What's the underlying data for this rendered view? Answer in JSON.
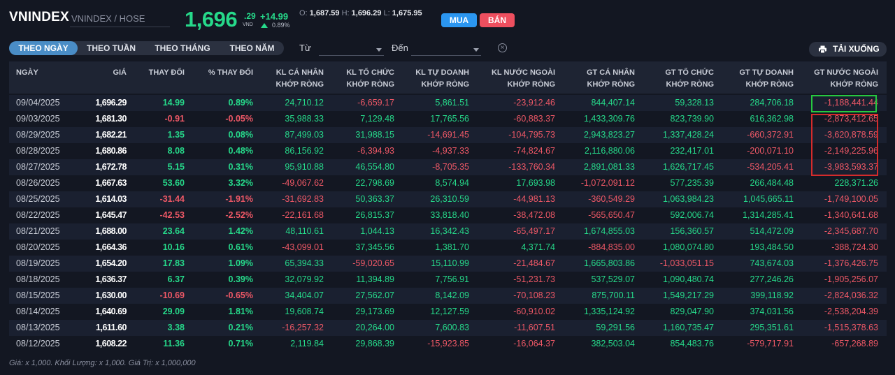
{
  "header": {
    "symbol": "VNINDEX",
    "subtitle": "VNINDEX / HOSE",
    "price_int": "1,696",
    "price_dec": ".29",
    "unit": "VND",
    "change": "+14.99",
    "change_pct": "0.89%",
    "open_label": "O:",
    "open": "1,687.59",
    "high_label": "H:",
    "high": "1,696.29",
    "low_label": "L:",
    "low": "1,675.95",
    "buy_label": "MUA",
    "sell_label": "BÁN"
  },
  "toolbar": {
    "tabs": [
      {
        "label": "THEO NGÀY",
        "active": true
      },
      {
        "label": "THEO TUẦN",
        "active": false
      },
      {
        "label": "THEO THÁNG",
        "active": false
      },
      {
        "label": "THEO NĂM",
        "active": false
      }
    ],
    "from_label": "Từ",
    "to_label": "Đến",
    "from_value": "",
    "to_value": "",
    "clear_icon": "close-circle-icon",
    "download_label": "TẢI XUỐNG",
    "download_icon": "printer-icon"
  },
  "table": {
    "columns": [
      {
        "l1": "NGÀY",
        "l2": ""
      },
      {
        "l1": "GIÁ",
        "l2": ""
      },
      {
        "l1": "THAY ĐỔI",
        "l2": ""
      },
      {
        "l1": "% THAY ĐỔI",
        "l2": ""
      },
      {
        "l1": "KL CÁ NHÂN",
        "l2": "KHỚP RÒNG"
      },
      {
        "l1": "KL TỔ CHỨC",
        "l2": "KHỚP RÒNG"
      },
      {
        "l1": "KL TỰ DOANH",
        "l2": "KHỚP RÒNG"
      },
      {
        "l1": "KL NƯỚC NGOÀI",
        "l2": "KHỚP RÒNG"
      },
      {
        "l1": "GT CÁ NHÂN",
        "l2": "KHỚP RÒNG"
      },
      {
        "l1": "GT TỔ CHỨC",
        "l2": "KHỚP RÒNG"
      },
      {
        "l1": "GT TỰ DOANH",
        "l2": "KHỚP RÒNG"
      },
      {
        "l1": "GT NƯỚC NGOÀI",
        "l2": "KHỚP RÒNG"
      }
    ],
    "rows": [
      [
        "09/04/2025",
        "1,696.29",
        "14.99",
        "0.89%",
        "24,710.12",
        "-6,659.17",
        "5,861.51",
        "-23,912.46",
        "844,407.14",
        "59,328.13",
        "284,706.18",
        "-1,188,441.44"
      ],
      [
        "09/03/2025",
        "1,681.30",
        "-0.91",
        "-0.05%",
        "35,988.33",
        "7,129.48",
        "17,765.56",
        "-60,883.37",
        "1,433,309.76",
        "823,739.90",
        "616,362.98",
        "-2,873,412.65"
      ],
      [
        "08/29/2025",
        "1,682.21",
        "1.35",
        "0.08%",
        "87,499.03",
        "31,988.15",
        "-14,691.45",
        "-104,795.73",
        "2,943,823.27",
        "1,337,428.24",
        "-660,372.91",
        "-3,620,878.59"
      ],
      [
        "08/28/2025",
        "1,680.86",
        "8.08",
        "0.48%",
        "86,156.92",
        "-6,394.93",
        "-4,937.33",
        "-74,824.67",
        "2,116,880.06",
        "232,417.01",
        "-200,071.10",
        "-2,149,225.96"
      ],
      [
        "08/27/2025",
        "1,672.78",
        "5.15",
        "0.31%",
        "95,910.88",
        "46,554.80",
        "-8,705.35",
        "-133,760.34",
        "2,891,081.33",
        "1,626,717.45",
        "-534,205.41",
        "-3,983,593.37"
      ],
      [
        "08/26/2025",
        "1,667.63",
        "53.60",
        "3.32%",
        "-49,067.62",
        "22,798.69",
        "8,574.94",
        "17,693.98",
        "-1,072,091.12",
        "577,235.39",
        "266,484.48",
        "228,371.26"
      ],
      [
        "08/25/2025",
        "1,614.03",
        "-31.44",
        "-1.91%",
        "-31,692.83",
        "50,363.37",
        "26,310.59",
        "-44,981.13",
        "-360,549.29",
        "1,063,984.23",
        "1,045,665.11",
        "-1,749,100.05"
      ],
      [
        "08/22/2025",
        "1,645.47",
        "-42.53",
        "-2.52%",
        "-22,161.68",
        "26,815.37",
        "33,818.40",
        "-38,472.08",
        "-565,650.47",
        "592,006.74",
        "1,314,285.41",
        "-1,340,641.68"
      ],
      [
        "08/21/2025",
        "1,688.00",
        "23.64",
        "1.42%",
        "48,110.61",
        "1,044.13",
        "16,342.43",
        "-65,497.17",
        "1,674,855.03",
        "156,360.57",
        "514,472.09",
        "-2,345,687.70"
      ],
      [
        "08/20/2025",
        "1,664.36",
        "10.16",
        "0.61%",
        "-43,099.01",
        "37,345.56",
        "1,381.70",
        "4,371.74",
        "-884,835.00",
        "1,080,074.80",
        "193,484.50",
        "-388,724.30"
      ],
      [
        "08/19/2025",
        "1,654.20",
        "17.83",
        "1.09%",
        "65,394.33",
        "-59,020.65",
        "15,110.99",
        "-21,484.67",
        "1,665,803.86",
        "-1,033,051.15",
        "743,674.03",
        "-1,376,426.75"
      ],
      [
        "08/18/2025",
        "1,636.37",
        "6.37",
        "0.39%",
        "32,079.92",
        "11,394.89",
        "7,756.91",
        "-51,231.73",
        "537,529.07",
        "1,090,480.74",
        "277,246.26",
        "-1,905,256.07"
      ],
      [
        "08/15/2025",
        "1,630.00",
        "-10.69",
        "-0.65%",
        "34,404.07",
        "27,562.07",
        "8,142.09",
        "-70,108.23",
        "875,700.11",
        "1,549,217.29",
        "399,118.92",
        "-2,824,036.32"
      ],
      [
        "08/14/2025",
        "1,640.69",
        "29.09",
        "1.81%",
        "19,608.74",
        "29,173.69",
        "12,127.59",
        "-60,910.02",
        "1,335,124.92",
        "829,047.90",
        "374,031.56",
        "-2,538,204.39"
      ],
      [
        "08/13/2025",
        "1,611.60",
        "3.38",
        "0.21%",
        "-16,257.32",
        "20,264.00",
        "7,600.83",
        "-11,607.51",
        "59,291.56",
        "1,160,735.47",
        "295,351.61",
        "-1,515,378.63"
      ],
      [
        "08/12/2025",
        "1,608.22",
        "11.36",
        "0.71%",
        "2,119.84",
        "29,868.39",
        "-15,923.85",
        "-16,064.37",
        "382,503.04",
        "854,483.76",
        "-579,717.91",
        "-657,268.89"
      ]
    ]
  },
  "footer": "Giá: x 1,000. Khối Lượng: x 1,000. Giá Trị: x 1,000,000",
  "colors": {
    "up": "#26d98a",
    "down": "#ee5866",
    "buy": "#2b96f0",
    "sell": "#ee4f5f",
    "highlight_green": "#26c940",
    "highlight_red": "#d42b2b"
  }
}
